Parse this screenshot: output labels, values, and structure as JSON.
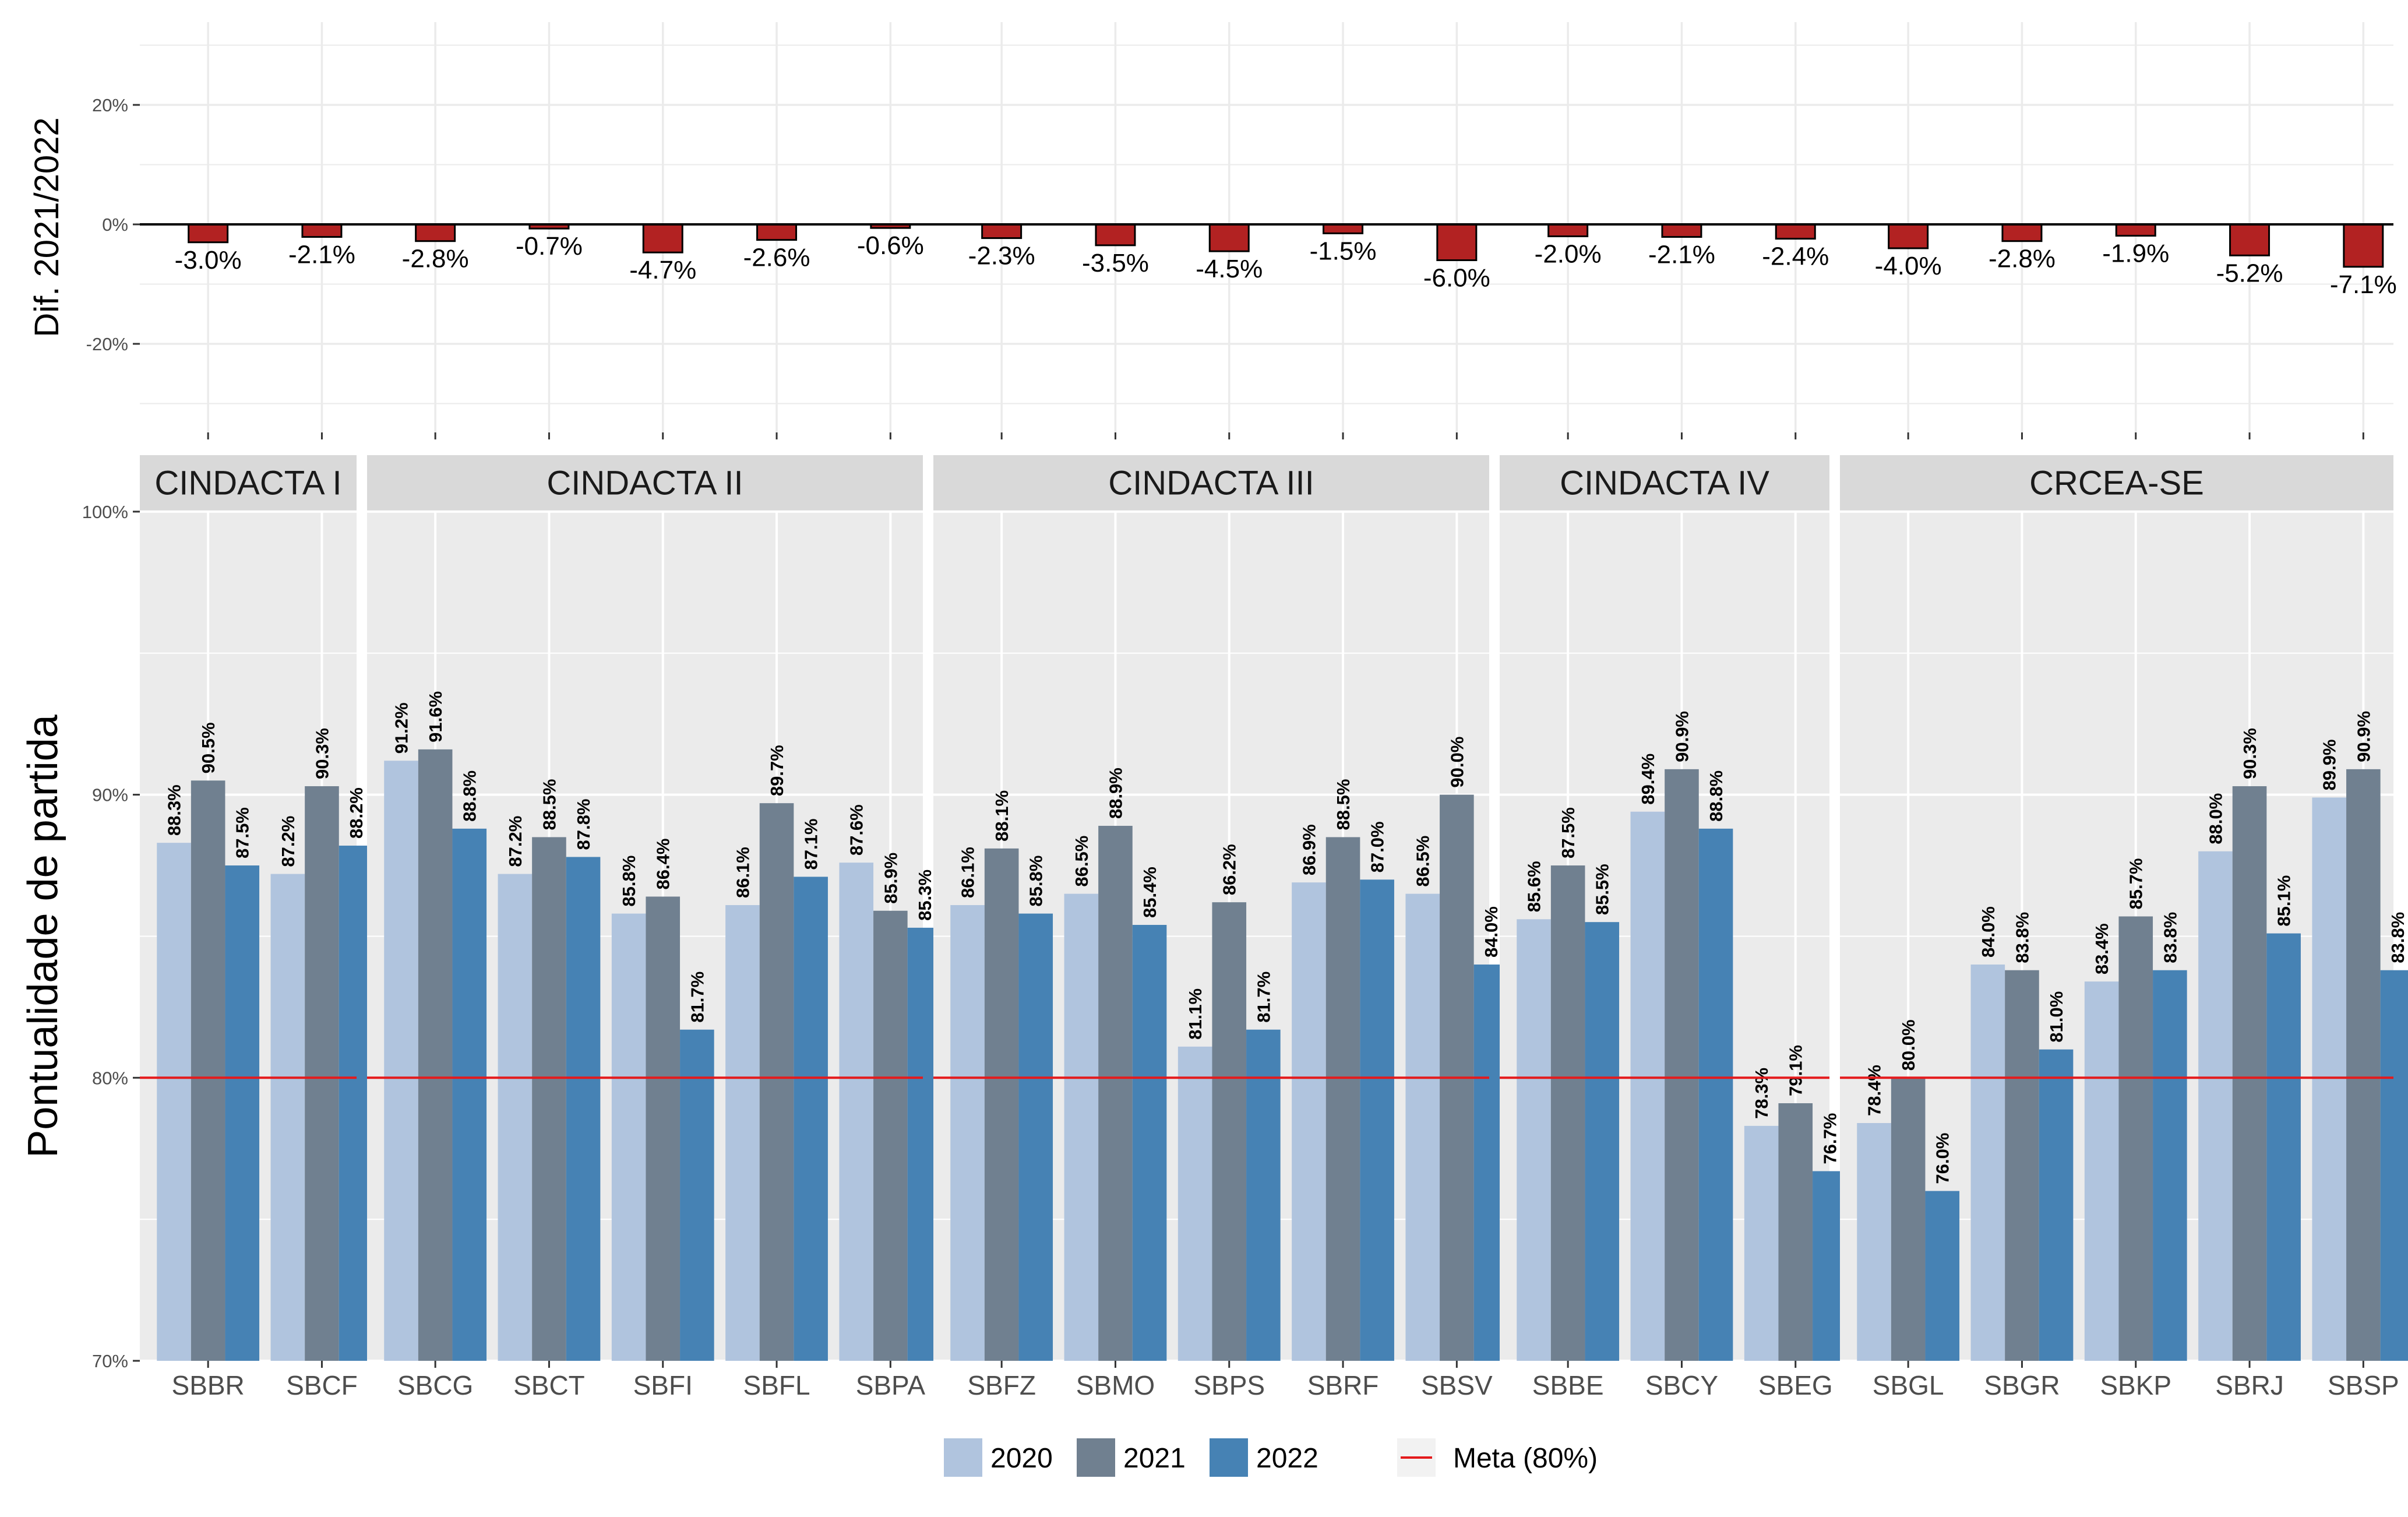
{
  "chart_data": [
    {
      "type": "bar",
      "ylabel": "Dif. 2021/2022",
      "y_ticks": [
        "20%",
        "0%",
        "-20%"
      ],
      "ylim": [
        -30,
        30
      ],
      "grid": true,
      "categories": [
        "SBBR",
        "SBCF",
        "SBCG",
        "SBCT",
        "SBFI",
        "SBFL",
        "SBPA",
        "SBFZ",
        "SBMO",
        "SBPS",
        "SBRF",
        "SBSV",
        "SBBE",
        "SBCY",
        "SBEG",
        "SBGL",
        "SBGR",
        "SBKP",
        "SBRJ",
        "SBSP"
      ],
      "values": [
        -3.0,
        -2.1,
        -2.8,
        -0.7,
        -4.7,
        -2.6,
        -0.6,
        -2.3,
        -3.5,
        -4.5,
        -1.5,
        -6.0,
        -2.0,
        -2.1,
        -2.4,
        -4.0,
        -2.8,
        -1.9,
        -5.2,
        -7.1
      ],
      "value_labels": [
        "-3.0%",
        "-2.1%",
        "-2.8%",
        "-0.7%",
        "-4.7%",
        "-2.6%",
        "-0.6%",
        "-2.3%",
        "-3.5%",
        "-4.5%",
        "-1.5%",
        "-6.0%",
        "-2.0%",
        "-2.1%",
        "-2.4%",
        "-4.0%",
        "-2.8%",
        "-1.9%",
        "-5.2%",
        "-7.1%"
      ],
      "bar_color": "#B22222"
    },
    {
      "type": "bar",
      "ylabel": "Pontualidade de partida",
      "y_ticks": [
        "100%",
        "90%",
        "80%",
        "70%"
      ],
      "ylim": [
        70,
        100
      ],
      "grid": true,
      "legend_position": "bottom",
      "reference_line": {
        "value": 80,
        "label": "Meta (80%)",
        "color": "#E41A1C"
      },
      "series_colors": {
        "2020": "#B0C4DE",
        "2021": "#708090",
        "2022": "#4682B4"
      },
      "series_names": [
        "2020",
        "2021",
        "2022"
      ],
      "panels": [
        {
          "name": "CINDACTA I",
          "airports": [
            {
              "code": "SBBR",
              "values": [
                88.3,
                90.5,
                87.5
              ],
              "labels": [
                "88.3%",
                "90.5%",
                "87.5%"
              ]
            },
            {
              "code": "SBCF",
              "values": [
                87.2,
                90.3,
                88.2
              ],
              "labels": [
                "87.2%",
                "90.3%",
                "88.2%"
              ]
            }
          ]
        },
        {
          "name": "CINDACTA II",
          "airports": [
            {
              "code": "SBCG",
              "values": [
                91.2,
                91.6,
                88.8
              ],
              "labels": [
                "91.2%",
                "91.6%",
                "88.8%"
              ]
            },
            {
              "code": "SBCT",
              "values": [
                87.2,
                88.5,
                87.8
              ],
              "labels": [
                "87.2%",
                "88.5%",
                "87.8%"
              ]
            },
            {
              "code": "SBFI",
              "values": [
                85.8,
                86.4,
                81.7
              ],
              "labels": [
                "85.8%",
                "86.4%",
                "81.7%"
              ]
            },
            {
              "code": "SBFL",
              "values": [
                86.1,
                89.7,
                87.1
              ],
              "labels": [
                "86.1%",
                "89.7%",
                "87.1%"
              ]
            },
            {
              "code": "SBPA",
              "values": [
                87.6,
                85.9,
                85.3
              ],
              "labels": [
                "87.6%",
                "85.9%",
                "85.3%"
              ]
            }
          ]
        },
        {
          "name": "CINDACTA III",
          "airports": [
            {
              "code": "SBFZ",
              "values": [
                86.1,
                88.1,
                85.8
              ],
              "labels": [
                "86.1%",
                "88.1%",
                "85.8%"
              ]
            },
            {
              "code": "SBMO",
              "values": [
                86.5,
                88.9,
                85.4
              ],
              "labels": [
                "86.5%",
                "88.9%",
                "85.4%"
              ]
            },
            {
              "code": "SBPS",
              "values": [
                81.1,
                86.2,
                81.7
              ],
              "labels": [
                "81.1%",
                "86.2%",
                "81.7%"
              ]
            },
            {
              "code": "SBRF",
              "values": [
                86.9,
                88.5,
                87.0
              ],
              "labels": [
                "86.9%",
                "88.5%",
                "87.0%"
              ]
            },
            {
              "code": "SBSV",
              "values": [
                86.5,
                90.0,
                84.0
              ],
              "labels": [
                "86.5%",
                "90.0%",
                "84.0%"
              ]
            }
          ]
        },
        {
          "name": "CINDACTA IV",
          "airports": [
            {
              "code": "SBBE",
              "values": [
                85.6,
                87.5,
                85.5
              ],
              "labels": [
                "85.6%",
                "87.5%",
                "85.5%"
              ]
            },
            {
              "code": "SBCY",
              "values": [
                89.4,
                90.9,
                88.8
              ],
              "labels": [
                "89.4%",
                "90.9%",
                "88.8%"
              ]
            },
            {
              "code": "SBEG",
              "values": [
                78.3,
                79.1,
                76.7
              ],
              "labels": [
                "78.3%",
                "79.1%",
                "76.7%"
              ]
            }
          ]
        },
        {
          "name": "CRCEA-SE",
          "airports": [
            {
              "code": "SBGL",
              "values": [
                78.4,
                80.0,
                76.0
              ],
              "labels": [
                "78.4%",
                "80.0%",
                "76.0%"
              ]
            },
            {
              "code": "SBGR",
              "values": [
                84.0,
                83.8,
                81.0
              ],
              "labels": [
                "84.0%",
                "83.8%",
                "81.0%"
              ]
            },
            {
              "code": "SBKP",
              "values": [
                83.4,
                85.7,
                83.8
              ],
              "labels": [
                "83.4%",
                "85.7%",
                "83.8%"
              ]
            },
            {
              "code": "SBRJ",
              "values": [
                88.0,
                90.3,
                85.1
              ],
              "labels": [
                "88.0%",
                "90.3%",
                "85.1%"
              ]
            },
            {
              "code": "SBSP",
              "values": [
                89.9,
                90.9,
                83.8
              ],
              "labels": [
                "89.9%",
                "90.9%",
                "83.8%"
              ]
            }
          ]
        }
      ]
    }
  ]
}
